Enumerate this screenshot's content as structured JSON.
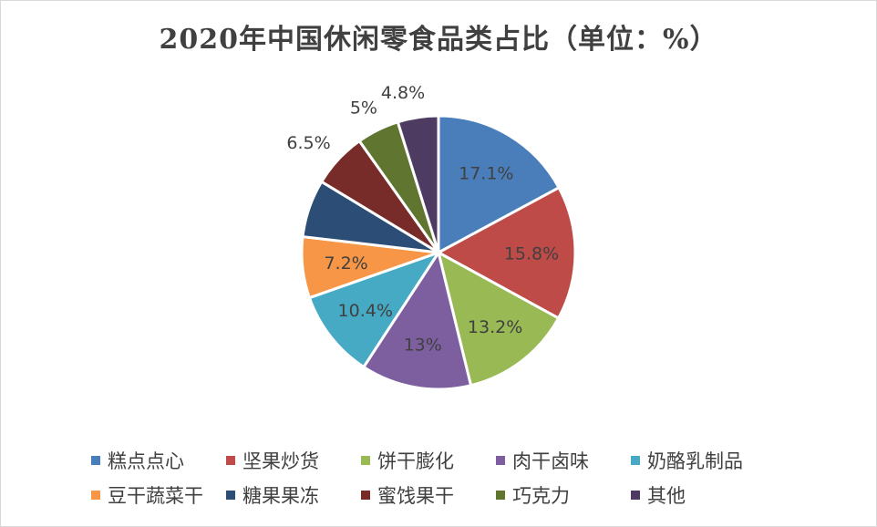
{
  "chart_data": {
    "type": "pie",
    "title": "2020年中国休闲零食品类占比（单位：%）",
    "start_angle_deg": 0,
    "direction": "clockwise",
    "slices": [
      {
        "label": "糕点点心",
        "value": 17.1,
        "display": "17.1%",
        "color": "#4a7ebb"
      },
      {
        "label": "坚果炒货",
        "value": 15.8,
        "display": "15.8%",
        "color": "#be4b48"
      },
      {
        "label": "饼干膨化",
        "value": 13.2,
        "display": "13.2%",
        "color": "#98b954"
      },
      {
        "label": "肉干卤味",
        "value": 13,
        "display": "13%",
        "color": "#7d5fa0"
      },
      {
        "label": "奶酪乳制品",
        "value": 10.4,
        "display": "10.4%",
        "color": "#46aac4"
      },
      {
        "label": "豆干蔬菜干",
        "value": 7.2,
        "display": "7.2%",
        "color": "#f79646"
      },
      {
        "label": "糖果果冻",
        "value": 6.8,
        "display": "",
        "color": "#2c4d75"
      },
      {
        "label": "蜜饯果干",
        "value": 6.5,
        "display": "6.5%",
        "color": "#772c2a"
      },
      {
        "label": "巧克力",
        "value": 5,
        "display": "5%",
        "color": "#5f7530"
      },
      {
        "label": "其他",
        "value": 4.8,
        "display": "4.8%",
        "color": "#4d3b62"
      }
    ],
    "legend_position": "bottom"
  }
}
